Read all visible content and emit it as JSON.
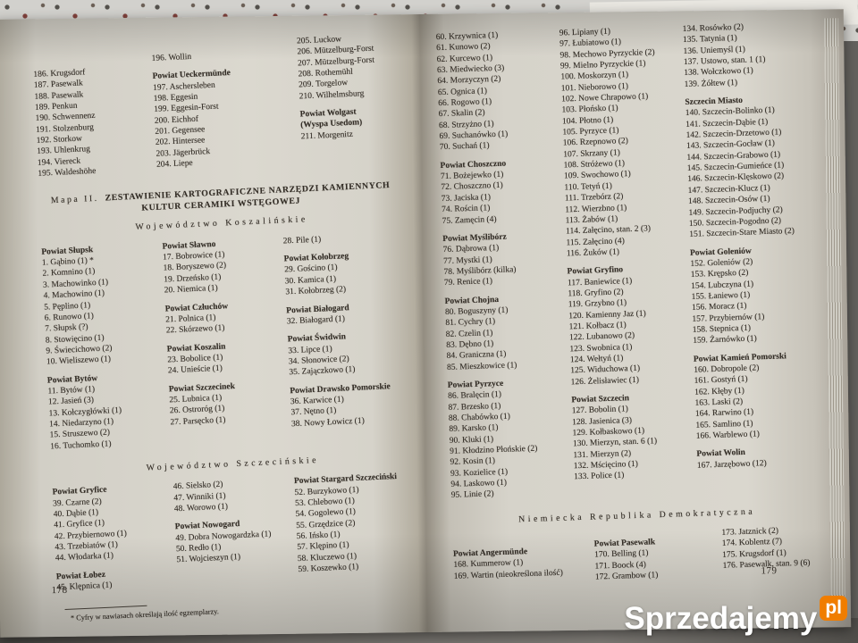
{
  "watermark": {
    "name": "Sprzedajemy",
    "tld": "pl",
    "accent": "#f07d00"
  },
  "left_page": {
    "page_number": "178",
    "footnote": "* Cyfry w nawiasach określają ilość egzemplarzy.",
    "map_title": {
      "prefix": "Mapa II.",
      "line1": "ZESTAWIENIE KARTOGRAFICZNE NARZĘDZI KAMIENNYCH",
      "line2": "KULTUR CERAMIKI WSTĘGOWEJ"
    },
    "section_koszalin": "Województwo Koszalińskie",
    "section_szczecin": "Województwo Szczecińskie",
    "german": {
      "col1": [
        {
          "items": [
            "186. Krugsdorf",
            "187. Pasewalk",
            "188. Pasewalk",
            "189. Penkun",
            "190. Schwennenz",
            "191. Stolzenburg",
            "192. Storkow",
            "193. Uhlenkrug",
            "194. Viereck",
            "195. Waldeshöhe"
          ]
        }
      ],
      "col2": [
        {
          "items": [
            "196. Wollin"
          ]
        },
        {
          "heading": "Powiat Ueckermünde",
          "items": [
            "197. Aschersleben",
            "198. Eggesin",
            "199. Eggesin-Forst",
            "200. Eichhof",
            "201. Gegensee",
            "202. Hintersee",
            "203. Jägerbrück",
            "204. Liepe"
          ]
        }
      ],
      "col3": [
        {
          "items": [
            "205. Luckow",
            "206. Mützelburg-Forst",
            "207. Mützelburg-Forst",
            "208. Rothemühl",
            "209. Torgelow",
            "210. Wilhelmsburg"
          ]
        },
        {
          "heading": "Powiat Wolgast",
          "heading2": "(Wyspa Usedom)",
          "items": [
            "211. Morgenitz"
          ]
        }
      ]
    },
    "koszalin": {
      "col1": [
        {
          "heading": "Powiat Słupsk",
          "items": [
            "1. Gąbino (1) *",
            "2. Komnino (1)",
            "3. Machowinko (1)",
            "4. Machowino (1)",
            "5. Pęplino (1)",
            "6. Runowo (1)",
            "7. Słupsk (?)",
            "8. Stowięcino (1)",
            "9. Świecichowo (2)",
            "10. Wieliszewo (1)"
          ]
        },
        {
          "heading": "Powiat Bytów",
          "items": [
            "11. Bytów (1)",
            "12. Jasień (3)",
            "13. Kołczygłówki (1)",
            "14. Niedarzyno (1)",
            "15. Struszewo (2)",
            "16. Tuchomko (1)"
          ]
        }
      ],
      "col2": [
        {
          "heading": "Powiat Sławno",
          "items": [
            "17. Bobrowice (1)",
            "18. Boryszewo (2)",
            "19. Drzeńsko (1)",
            "20. Niemica (1)"
          ]
        },
        {
          "heading": "Powiat Człuchów",
          "items": [
            "21. Polnica (1)",
            "22. Skórzewo (1)"
          ]
        },
        {
          "heading": "Powiat Koszalin",
          "items": [
            "23. Bobolice (1)",
            "24. Unieście (1)"
          ]
        },
        {
          "heading": "Powiat Szczecinek",
          "items": [
            "25. Lubnica (1)",
            "26. Ostroróg (1)",
            "27. Parsęcko (1)"
          ]
        }
      ],
      "col3": [
        {
          "items": [
            "28. Pile (1)"
          ]
        },
        {
          "heading": "Powiat Kołobrzeg",
          "items": [
            "29. Gościno (1)",
            "30. Kamica (1)",
            "31. Kołobrzeg (2)"
          ]
        },
        {
          "heading": "Powiat Białogard",
          "items": [
            "32. Białogard (1)"
          ]
        },
        {
          "heading": "Powiat Świdwin",
          "items": [
            "33. Lipce (1)",
            "34. Słonowice (2)",
            "35. Zajączkowo (1)"
          ]
        },
        {
          "heading": "Powiat Drawsko Pomorskie",
          "items": [
            "36. Karwice (1)",
            "37. Nętno (1)",
            "38. Nowy Łowicz (1)"
          ]
        }
      ]
    },
    "szczecin": {
      "col1": [
        {
          "heading": "Powiat Gryfice",
          "items": [
            "39. Czarne (2)",
            "40. Dąbie (1)",
            "41. Gryfice (1)",
            "42. Przybiernowo (1)",
            "43. Trzebiatów (1)",
            "44. Włodarka (1)"
          ]
        },
        {
          "heading": "Powiat Łobez",
          "items": [
            "45. Klępnica (1)"
          ]
        }
      ],
      "col2": [
        {
          "items": [
            "46. Sielsko (2)",
            "47. Winniki (1)",
            "48. Worowo (1)"
          ]
        },
        {
          "heading": "Powiat Nowogard",
          "items": [
            "49. Dobra Nowogardzka (1)",
            "50. Redło (1)",
            "51. Wojcieszyn (1)"
          ]
        }
      ],
      "col3": [
        {
          "heading": "Powiat Stargard Szczeciński",
          "items": [
            "52. Burzykowo (1)",
            "53. Chlebowo (1)",
            "54. Gogolewo (1)",
            "55. Grzędzice (2)",
            "56. Ińsko (1)",
            "57. Klępino (1)",
            "58. Kluczewo (1)",
            "59. Koszewko (1)"
          ]
        }
      ]
    }
  },
  "right_page": {
    "page_number": "179",
    "section_nrd": "Niemiecka Republika Demokratyczna",
    "main": {
      "col1": [
        {
          "items": [
            "60. Krzywnica (1)",
            "61. Kunowo (2)",
            "62. Kurcewo (1)",
            "63. Miedwiecko (3)",
            "64. Morzyczyn (2)",
            "65. Ognica (1)",
            "66. Rogowo (1)",
            "67. Skalin (2)",
            "68. Strzyżno (1)",
            "69. Suchanówko (1)",
            "70. Suchań (1)"
          ]
        },
        {
          "heading": "Powiat Choszczno",
          "items": [
            "71. Bożejewko (1)",
            "72. Choszczno (1)",
            "73. Jaciska (1)",
            "74. Rościn (1)",
            "75. Zamęcin (4)"
          ]
        },
        {
          "heading": "Powiat Myślibórz",
          "items": [
            "76. Dąbrowa (1)",
            "77. Mystki (1)",
            "78. Myślibórz (kilka)",
            "79. Renice (1)"
          ]
        },
        {
          "heading": "Powiat Chojna",
          "items": [
            "80. Boguszyny (1)",
            "81. Cychry (1)",
            "82. Czelin (1)",
            "83. Dębno (1)",
            "84. Graniczna (1)",
            "85. Mieszkowice (1)"
          ]
        },
        {
          "heading": "Powiat Pyrzyce",
          "items": [
            "86. Bralęcin (1)",
            "87. Brzesko (1)",
            "88. Chabówko (1)",
            "89. Karsko (1)",
            "90. Kluki (1)",
            "91. Kłodzino Płońskie (2)",
            "92. Kosin (1)",
            "93. Kozielice (1)",
            "94. Laskowo (1)",
            "95. Linie (2)"
          ]
        }
      ],
      "col2": [
        {
          "items": [
            "96. Lipiany (1)",
            "97. Łubiatowo (1)",
            "98. Mechowo Pyrzyckie (2)",
            "99. Mielno Pyrzyckie (1)",
            "100. Moskorzyn (1)",
            "101. Nieborowo (1)",
            "102. Nowe Chrapowo (1)",
            "103. Płońsko (1)",
            "104. Płotno (1)",
            "105. Pyrzyce (1)",
            "106. Rzepnowo (2)",
            "107. Skrzany (1)",
            "108. Stróżewo (1)",
            "109. Swochowo (1)",
            "110. Tetyń (1)",
            "111. Trzebórz (2)",
            "112. Wierzbno (1)",
            "113. Żabów (1)",
            "114. Załęcino, stan. 2 (3)",
            "115. Załęcino (4)",
            "116. Żuków (1)"
          ]
        },
        {
          "heading": "Powiat Gryfino",
          "items": [
            "117. Baniewice (1)",
            "118. Gryfino (2)",
            "119. Grzybno (1)",
            "120. Kamienny Jaz (1)",
            "121. Kołbacz (1)",
            "122. Lubanowo (2)",
            "123. Swobnica (1)",
            "124. Wełtyń (1)",
            "125. Widuchowa (1)",
            "126. Żelisławiec (1)"
          ]
        },
        {
          "heading": "Powiat Szczecin",
          "items": [
            "127. Bobolin (1)",
            "128. Jasienica (3)",
            "129. Kołbaskowo (1)",
            "130. Mierzyn, stan. 6 (1)",
            "131. Mierzyn (2)",
            "132. Mścięcino (1)",
            "133. Police (1)"
          ]
        }
      ],
      "col3": [
        {
          "items": [
            "134. Rosówko (2)",
            "135. Tatynia (1)",
            "136. Uniemyśl (1)",
            "137. Ustowo, stan. 1 (1)",
            "138. Wołczkowo (1)",
            "139. Żółtew (1)"
          ]
        },
        {
          "heading": "Szczecin Miasto",
          "items": [
            "140. Szczecin-Bolinko (1)",
            "141. Szczecin-Dąbie (1)",
            "142. Szczecin-Drzetowo (1)",
            "143. Szczecin-Gocław (1)",
            "144. Szczecin-Grabowo (1)",
            "145. Szczecin-Gumieńce (1)",
            "146. Szczecin-Klęskowo (2)",
            "147. Szczecin-Klucz (1)",
            "148. Szczecin-Osów (1)",
            "149. Szczecin-Podjuchy (2)",
            "150. Szczecin-Pogodno (2)",
            "151. Szczecin-Stare Miasto (2)"
          ]
        },
        {
          "heading": "Powiat Goleniów",
          "items": [
            "152. Goleniów (2)",
            "153. Krępsko (2)",
            "154. Lubczyna (1)",
            "155. Łaniewo (1)",
            "156. Moracz (1)",
            "157. Przybiernów (1)",
            "158. Stepnica (1)",
            "159. Żarnówko (1)"
          ]
        },
        {
          "heading": "Powiat Kamień Pomorski",
          "items": [
            "160. Dobropole (2)",
            "161. Gostyń (1)",
            "162. Kłęby (1)",
            "163. Laski (2)",
            "164. Rarwino (1)",
            "165. Samlino (1)",
            "166. Warblewo (1)"
          ]
        },
        {
          "heading": "Powiat Wolin",
          "items": [
            "167. Jarzębowo (12)"
          ]
        }
      ]
    },
    "nrd": {
      "col1": [
        {
          "heading": "Powiat Angermünde",
          "items": [
            "168. Kummerow (1)",
            "169. Wartin (nieokreślona ilość)"
          ]
        }
      ],
      "col2": [
        {
          "heading": "Powiat Pasewalk",
          "items": [
            "170. Belling (1)",
            "171. Boock (4)",
            "172. Grambow (1)"
          ]
        }
      ],
      "col3": [
        {
          "items": [
            "173. Jatznick (2)",
            "174. Koblentz (7)",
            "175. Krugsdorf (1)",
            "176. Pasewalk, stan. 9 (6)"
          ]
        }
      ]
    }
  }
}
